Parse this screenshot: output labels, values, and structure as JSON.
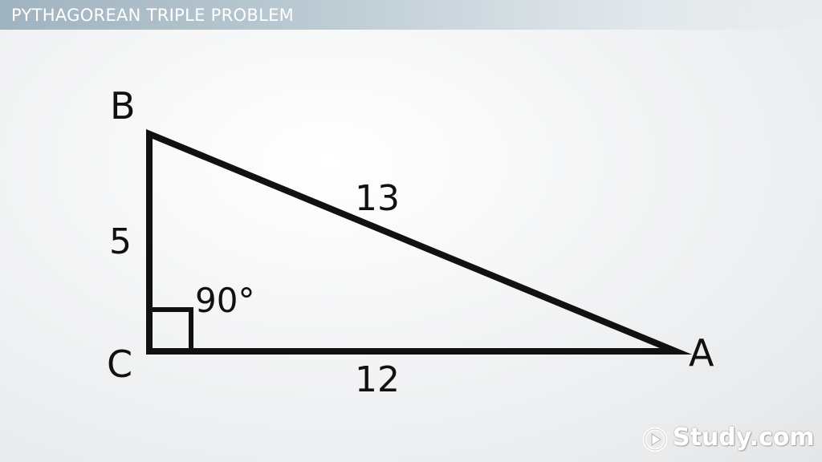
{
  "header": {
    "title": "PYTHAGOREAN TRIPLE PROBLEM"
  },
  "diagram": {
    "vertices": {
      "B": "B",
      "C": "C",
      "A": "A"
    },
    "sides": {
      "bc": "5",
      "ca": "12",
      "ab": "13"
    },
    "angle_label": "90°"
  },
  "watermark": {
    "brand": "Study.com"
  },
  "colors": {
    "stroke": "#111111",
    "title_text": "#ffffff"
  }
}
